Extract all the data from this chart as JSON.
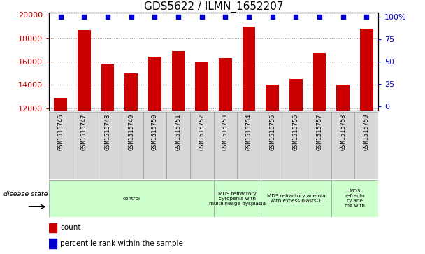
{
  "title": "GDS5622 / ILMN_1652207",
  "samples": [
    "GSM1515746",
    "GSM1515747",
    "GSM1515748",
    "GSM1515749",
    "GSM1515750",
    "GSM1515751",
    "GSM1515752",
    "GSM1515753",
    "GSM1515754",
    "GSM1515755",
    "GSM1515756",
    "GSM1515757",
    "GSM1515758",
    "GSM1515759"
  ],
  "counts": [
    12900,
    18700,
    15750,
    15000,
    16450,
    16900,
    16000,
    16300,
    19000,
    14000,
    14500,
    16700,
    14000,
    18800
  ],
  "percentile_ranks": [
    100,
    100,
    100,
    100,
    100,
    100,
    100,
    100,
    100,
    100,
    100,
    100,
    100,
    100
  ],
  "ylim_left": [
    11800,
    20200
  ],
  "ylim_right": [
    -4.5,
    104.5
  ],
  "yticks_left": [
    12000,
    14000,
    16000,
    18000,
    20000
  ],
  "yticks_right": [
    0,
    25,
    50,
    75,
    100
  ],
  "bar_color": "#cc0000",
  "dot_color": "#0000cc",
  "disease_groups": [
    {
      "label": "control",
      "start": 0,
      "end": 7
    },
    {
      "label": "MDS refractory\ncytopenia with\nmultilineage dysplasia",
      "start": 7,
      "end": 9
    },
    {
      "label": "MDS refractory anemia\nwith excess blasts-1",
      "start": 9,
      "end": 12
    },
    {
      "label": "MDS\nrefracto\nry ane\nma with",
      "start": 12,
      "end": 14
    }
  ],
  "group_color": "#ccffcc",
  "sample_box_color": "#d8d8d8",
  "disease_state_label": "disease state",
  "legend_count_label": "count",
  "legend_percentile_label": "percentile rank within the sample",
  "tick_color_left": "#cc0000",
  "tick_color_right": "#0000cc",
  "title_fontsize": 11,
  "tick_fontsize": 8,
  "bar_width": 0.55
}
